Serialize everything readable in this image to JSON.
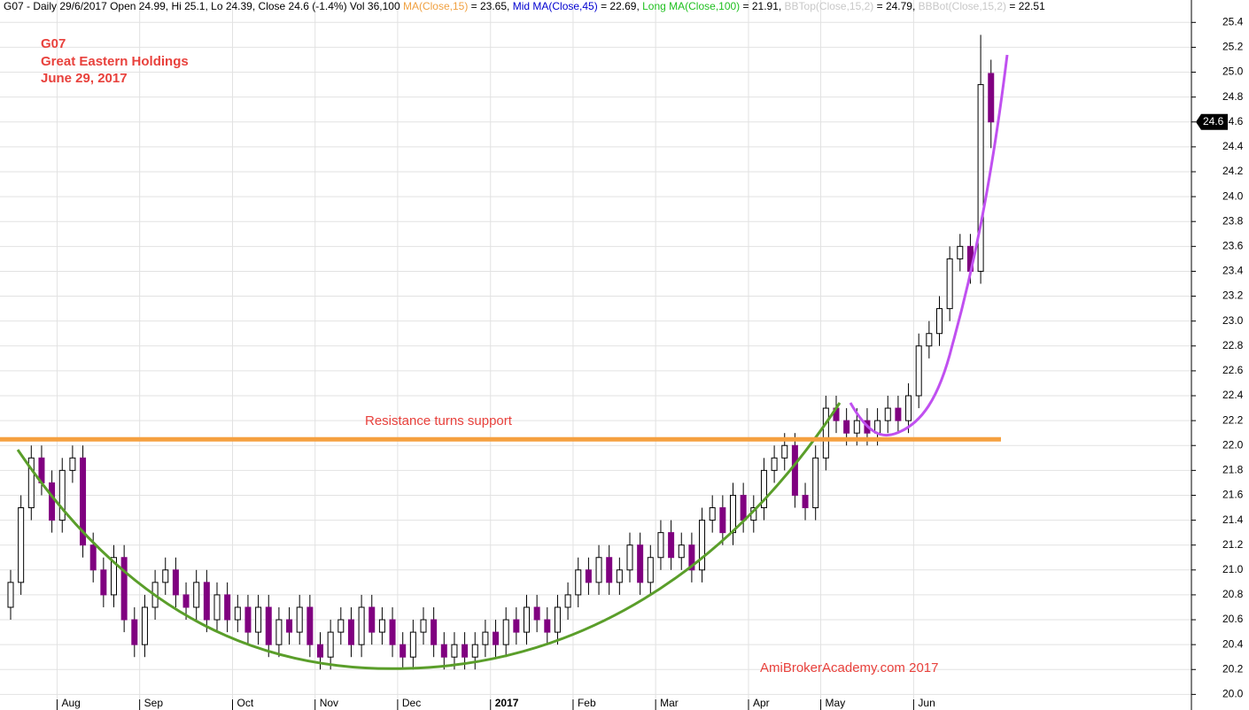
{
  "chart_data": {
    "type": "candlestick",
    "header": [
      {
        "text": "G07 - Daily 29/6/2017 Open 24.99, Hi 25.1, Lo 24.39, Close 24.6 (-1.4%) Vol 36,100 ",
        "color": "#000000"
      },
      {
        "text": "MA(Close,15)",
        "color": "#f0a040"
      },
      {
        "text": " = 23.65, ",
        "color": "#000000"
      },
      {
        "text": "Mid MA(Close,45)",
        "color": "#0000d0"
      },
      {
        "text": " = 22.69, ",
        "color": "#000000"
      },
      {
        "text": "Long MA(Close,100)",
        "color": "#20c020"
      },
      {
        "text": " = 21.91, ",
        "color": "#000000"
      },
      {
        "text": "BBTop(Close,15,2)",
        "color": "#c8c8c8"
      },
      {
        "text": " = 24.79, ",
        "color": "#000000"
      },
      {
        "text": "BBBot(Close,15,2)",
        "color": "#c8c8c8"
      },
      {
        "text": " = 22.51",
        "color": "#000000"
      }
    ],
    "labels": [
      "G07",
      "Great Eastern Holdings",
      "June 29, 2017"
    ],
    "resistance_text": "Resistance turns support",
    "watermark": "AmiBrokerAcademy.com  2017",
    "resistance_level": 22.05,
    "last_price": 24.6,
    "up_color": "#ffffff",
    "down_color": "#800080",
    "categories": [
      null,
      null,
      null,
      null,
      null,
      "Aug",
      null,
      null,
      null,
      null,
      null,
      null,
      null,
      "Sep",
      null,
      null,
      null,
      null,
      null,
      null,
      null,
      null,
      "Oct",
      null,
      null,
      null,
      null,
      null,
      null,
      null,
      "Nov",
      null,
      null,
      null,
      null,
      null,
      null,
      null,
      "Dec",
      null,
      null,
      null,
      null,
      null,
      null,
      null,
      null,
      "2017",
      null,
      null,
      null,
      null,
      null,
      null,
      null,
      "Feb",
      null,
      null,
      null,
      null,
      null,
      null,
      null,
      "Mar",
      null,
      null,
      null,
      null,
      null,
      null,
      null,
      null,
      "Apr",
      null,
      null,
      null,
      null,
      null,
      null,
      "May",
      null,
      null,
      null,
      null,
      null,
      null,
      null,
      null,
      "Jun",
      null,
      null,
      null,
      null,
      null,
      null,
      null
    ],
    "open": [
      20.7,
      20.9,
      21.5,
      21.9,
      21.7,
      21.4,
      21.8,
      21.9,
      21.2,
      21.0,
      20.8,
      21.1,
      20.6,
      20.4,
      20.7,
      20.9,
      21.0,
      20.8,
      20.7,
      20.9,
      20.6,
      20.8,
      20.6,
      20.7,
      20.5,
      20.7,
      20.4,
      20.6,
      20.5,
      20.7,
      20.4,
      20.3,
      20.5,
      20.6,
      20.4,
      20.7,
      20.5,
      20.6,
      20.4,
      20.3,
      20.5,
      20.6,
      20.4,
      20.3,
      20.4,
      20.3,
      20.4,
      20.5,
      20.4,
      20.6,
      20.5,
      20.7,
      20.6,
      20.5,
      20.7,
      20.8,
      21.0,
      20.9,
      21.1,
      20.9,
      21.0,
      21.2,
      20.9,
      21.1,
      21.3,
      21.1,
      21.2,
      21.0,
      21.4,
      21.5,
      21.3,
      21.6,
      21.4,
      21.5,
      21.8,
      21.9,
      22.0,
      21.6,
      21.5,
      21.9,
      22.3,
      22.2,
      22.1,
      22.2,
      22.1,
      22.2,
      22.3,
      22.2,
      22.4,
      22.8,
      22.9,
      23.1,
      23.5,
      23.6,
      23.4,
      24.99
    ],
    "high": [
      21.0,
      21.6,
      22.0,
      22.0,
      21.8,
      21.9,
      22.0,
      22.0,
      21.3,
      21.1,
      21.2,
      21.2,
      20.7,
      20.8,
      21.0,
      21.1,
      21.1,
      20.9,
      21.0,
      21.0,
      20.9,
      20.9,
      20.8,
      20.8,
      20.8,
      20.8,
      20.7,
      20.7,
      20.8,
      20.8,
      20.5,
      20.6,
      20.7,
      20.7,
      20.8,
      20.8,
      20.7,
      20.7,
      20.5,
      20.6,
      20.7,
      20.7,
      20.5,
      20.5,
      20.5,
      20.5,
      20.6,
      20.6,
      20.7,
      20.7,
      20.8,
      20.8,
      20.7,
      20.8,
      20.9,
      21.1,
      21.1,
      21.2,
      21.2,
      21.1,
      21.3,
      21.3,
      21.2,
      21.4,
      21.4,
      21.3,
      21.3,
      21.5,
      21.6,
      21.6,
      21.7,
      21.7,
      21.6,
      21.9,
      22.0,
      22.1,
      22.1,
      21.7,
      22.0,
      22.4,
      22.4,
      22.3,
      22.3,
      22.3,
      22.3,
      22.4,
      22.4,
      22.5,
      22.9,
      23.0,
      23.2,
      23.6,
      23.7,
      23.7,
      25.3,
      25.1
    ],
    "low": [
      20.6,
      20.8,
      21.4,
      21.6,
      21.3,
      21.3,
      21.7,
      21.1,
      20.9,
      20.7,
      20.7,
      20.5,
      20.3,
      20.3,
      20.6,
      20.8,
      20.7,
      20.6,
      20.6,
      20.5,
      20.5,
      20.5,
      20.5,
      20.4,
      20.4,
      20.3,
      20.3,
      20.4,
      20.4,
      20.3,
      20.2,
      20.2,
      20.4,
      20.3,
      20.3,
      20.4,
      20.4,
      20.3,
      20.2,
      20.2,
      20.4,
      20.3,
      20.2,
      20.2,
      20.2,
      20.2,
      20.3,
      20.3,
      20.3,
      20.4,
      20.4,
      20.5,
      20.4,
      20.4,
      20.6,
      20.7,
      20.8,
      20.8,
      20.8,
      20.8,
      20.9,
      20.8,
      20.8,
      21.0,
      21.0,
      21.0,
      20.9,
      20.9,
      21.3,
      21.2,
      21.2,
      21.3,
      21.3,
      21.4,
      21.7,
      21.8,
      21.5,
      21.4,
      21.4,
      21.8,
      22.1,
      22.0,
      22.0,
      22.0,
      22.0,
      22.1,
      22.1,
      22.1,
      22.3,
      22.7,
      22.8,
      23.0,
      23.4,
      23.3,
      23.3,
      24.39
    ],
    "close": [
      20.9,
      21.5,
      21.9,
      21.7,
      21.4,
      21.8,
      21.9,
      21.2,
      21.0,
      20.8,
      21.1,
      20.6,
      20.4,
      20.7,
      20.9,
      21.0,
      20.8,
      20.7,
      20.9,
      20.6,
      20.8,
      20.6,
      20.7,
      20.5,
      20.7,
      20.4,
      20.6,
      20.5,
      20.7,
      20.4,
      20.3,
      20.5,
      20.6,
      20.4,
      20.7,
      20.5,
      20.6,
      20.4,
      20.3,
      20.5,
      20.6,
      20.4,
      20.3,
      20.4,
      20.3,
      20.4,
      20.5,
      20.4,
      20.6,
      20.5,
      20.7,
      20.6,
      20.5,
      20.7,
      20.8,
      21.0,
      20.9,
      21.1,
      20.9,
      21.0,
      21.2,
      20.9,
      21.1,
      21.3,
      21.1,
      21.2,
      21.0,
      21.4,
      21.5,
      21.3,
      21.6,
      21.4,
      21.5,
      21.8,
      21.9,
      22.0,
      21.6,
      21.5,
      21.9,
      22.3,
      22.2,
      22.1,
      22.2,
      22.1,
      22.2,
      22.3,
      22.2,
      22.4,
      22.8,
      22.9,
      23.1,
      23.5,
      23.6,
      23.4,
      24.9,
      24.6
    ],
    "ylim": [
      19.96,
      25.58
    ],
    "yticks": [
      {
        "value": 20,
        "label": "20.0"
      },
      20.2,
      20.4,
      20.6,
      20.8,
      {
        "value": 21,
        "label": "21.0"
      },
      21.2,
      21.4,
      21.6,
      21.8,
      {
        "value": 22,
        "label": "22.0"
      },
      22.2,
      22.4,
      22.6,
      22.8,
      {
        "value": 23,
        "label": "23.0"
      },
      23.2,
      23.4,
      23.6,
      23.8,
      {
        "value": 24,
        "label": "24.0"
      },
      24.2,
      24.4,
      24.6,
      24.8,
      {
        "value": 25,
        "label": "25.0"
      },
      25.2,
      25.4
    ],
    "grid": true
  }
}
